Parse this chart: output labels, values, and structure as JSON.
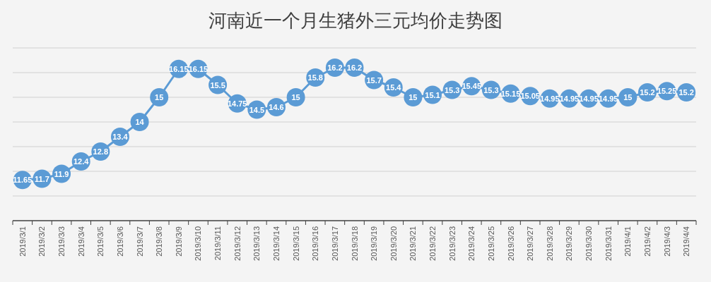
{
  "chart_data": {
    "type": "line",
    "title": "河南近一个月生猪外三元均价走势图",
    "categories": [
      "2019/3/1",
      "2019/3/2",
      "2019/3/3",
      "2019/3/4",
      "2019/3/5",
      "2019/3/6",
      "2019/3/7",
      "2019/3/8",
      "2019/3/9",
      "2019/3/10",
      "2019/3/11",
      "2019/3/12",
      "2019/3/13",
      "2019/3/14",
      "2019/3/15",
      "2019/3/16",
      "2019/3/17",
      "2019/3/18",
      "2019/3/19",
      "2019/3/20",
      "2019/3/21",
      "2019/3/22",
      "2019/3/23",
      "2019/3/24",
      "2019/3/25",
      "2019/3/26",
      "2019/3/27",
      "2019/3/28",
      "2019/3/29",
      "2019/3/30",
      "2019/3/31",
      "2019/4/1",
      "2019/4/2",
      "2019/4/3",
      "2019/4/4"
    ],
    "series": [
      {
        "color": "#5b9bd5",
        "values": [
          11.65,
          11.7,
          11.9,
          12.4,
          12.8,
          13.4,
          14,
          15,
          16.15,
          16.15,
          15.5,
          14.75,
          14.5,
          14.6,
          15,
          15.8,
          16.2,
          16.2,
          15.7,
          15.4,
          15,
          15.1,
          15.3,
          15.45,
          15.3,
          15.15,
          15.05,
          14.95,
          14.95,
          14.95,
          14.95,
          15,
          15.2,
          15.25,
          15.2
        ]
      }
    ],
    "ylim": [
      10,
      17
    ],
    "yticks": [
      {
        "value": 10,
        "label": null
      },
      {
        "value": 11,
        "label": null
      },
      {
        "value": 12,
        "label": null
      },
      {
        "value": 13,
        "label": null
      },
      {
        "value": 14,
        "label": null
      },
      {
        "value": 15,
        "label": null
      },
      {
        "value": 16,
        "label": null
      },
      {
        "value": 17,
        "label": null
      }
    ],
    "tick_labels": "x",
    "grid": "y",
    "marker": "circle",
    "line_style": "solid",
    "data_labels": true
  }
}
